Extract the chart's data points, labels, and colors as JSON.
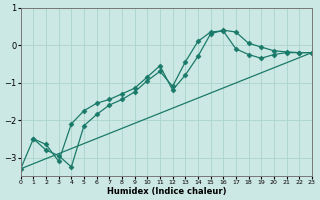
{
  "xlabel": "Humidex (Indice chaleur)",
  "bg_color": "#cce8e4",
  "grid_color": "#aad4cc",
  "line_color": "#1a7a6a",
  "xlim": [
    0,
    23
  ],
  "ylim": [
    -3.5,
    0.6
  ],
  "yticks": [
    1,
    0,
    -1,
    -2,
    -3
  ],
  "xticks": [
    0,
    1,
    2,
    3,
    4,
    5,
    6,
    7,
    8,
    9,
    10,
    11,
    12,
    13,
    14,
    15,
    16,
    17,
    18,
    19,
    20,
    21,
    22,
    23
  ],
  "curve1_x": [
    1,
    2,
    3,
    4,
    5,
    6,
    7,
    8,
    9,
    10,
    11,
    12,
    13,
    14,
    15,
    16,
    17,
    18,
    19,
    20,
    21,
    22,
    23
  ],
  "curve1_y": [
    -2.5,
    -2.65,
    -3.1,
    -2.1,
    -1.75,
    -1.55,
    -1.45,
    -1.3,
    -1.15,
    -0.85,
    -0.55,
    -1.2,
    -0.8,
    -0.3,
    0.3,
    0.4,
    0.35,
    0.05,
    -0.05,
    -0.15,
    -0.18,
    -0.2,
    -0.2
  ],
  "curve2_x": [
    0,
    1,
    2,
    3,
    4,
    5,
    6,
    7,
    8,
    9,
    10,
    11,
    12,
    13,
    14,
    15,
    16,
    17,
    18,
    19,
    20,
    21,
    22,
    23
  ],
  "curve2_y": [
    -3.3,
    -2.5,
    -2.8,
    -2.95,
    -3.25,
    -2.15,
    -1.85,
    -1.6,
    -1.45,
    -1.25,
    -0.95,
    -0.7,
    -1.1,
    -0.45,
    0.1,
    0.35,
    0.38,
    -0.1,
    -0.25,
    -0.35,
    -0.25,
    -0.2,
    -0.2,
    -0.2
  ],
  "curve3_x": [
    0,
    23
  ],
  "curve3_y": [
    -3.3,
    -0.2
  ],
  "marker": "D",
  "markersize": 2.5,
  "linewidth": 0.9
}
